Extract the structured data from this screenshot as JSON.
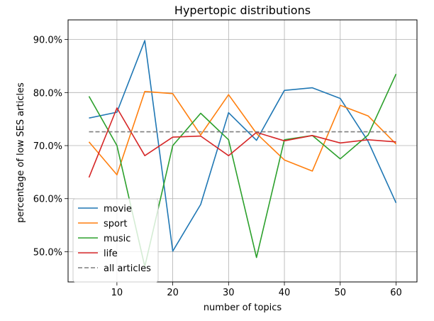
{
  "chart_data": {
    "type": "line",
    "title": "Hypertopic distributions",
    "xlabel": "number of topics",
    "ylabel": "percentage of low SES articles",
    "x": [
      5,
      10,
      15,
      20,
      25,
      30,
      35,
      40,
      45,
      50,
      55,
      60
    ],
    "xlim": [
      1.25,
      63.75
    ],
    "ylim": [
      0.443,
      0.937
    ],
    "xticks": [
      10,
      20,
      30,
      40,
      50,
      60
    ],
    "xtick_labels": [
      "10",
      "20",
      "30",
      "40",
      "50",
      "60"
    ],
    "yticks": [
      0.5,
      0.6,
      0.7,
      0.8,
      0.9
    ],
    "ytick_labels": [
      "50.0%",
      "60.0%",
      "70.0%",
      "80.0%",
      "90.0%"
    ],
    "grid": true,
    "legend_position": "lower-left",
    "series": [
      {
        "name": "movie",
        "color": "#1f77b4",
        "dashed": false,
        "values": [
          0.752,
          0.763,
          0.898,
          0.501,
          0.589,
          0.762,
          0.71,
          0.804,
          0.809,
          0.789,
          0.708,
          0.592
        ]
      },
      {
        "name": "sport",
        "color": "#ff7f0e",
        "dashed": false,
        "values": [
          0.707,
          0.645,
          0.802,
          0.798,
          0.72,
          0.796,
          0.723,
          0.673,
          0.652,
          0.776,
          0.756,
          0.703
        ]
      },
      {
        "name": "music",
        "color": "#2ca02c",
        "dashed": false,
        "values": [
          0.793,
          0.7,
          0.472,
          0.7,
          0.761,
          0.711,
          0.489,
          0.711,
          0.719,
          0.675,
          0.72,
          0.835
        ]
      },
      {
        "name": "life",
        "color": "#d62728",
        "dashed": false,
        "values": [
          0.64,
          0.771,
          0.681,
          0.716,
          0.718,
          0.681,
          0.725,
          0.709,
          0.719,
          0.705,
          0.711,
          0.707
        ]
      },
      {
        "name": "all articles",
        "color": "#7f7f7f",
        "dashed": true,
        "values": [
          0.726,
          0.726,
          0.726,
          0.726,
          0.726,
          0.726,
          0.726,
          0.726,
          0.726,
          0.726,
          0.726,
          0.726
        ]
      }
    ]
  }
}
